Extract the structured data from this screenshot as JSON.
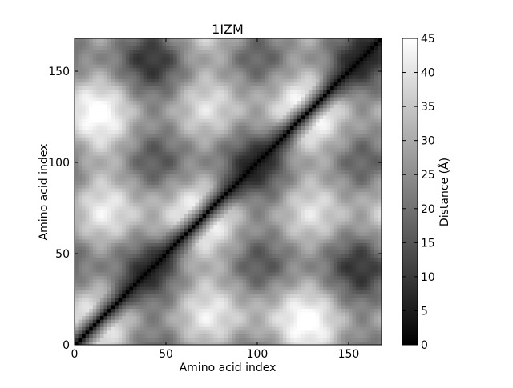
{
  "chart_data": {
    "type": "heatmap",
    "title": "1IZM",
    "xlabel": "Amino acid index",
    "ylabel": "Amino acid index",
    "xlim": [
      0,
      168
    ],
    "ylim": [
      0,
      168
    ],
    "xticks": [
      0,
      50,
      100,
      150
    ],
    "yticks": [
      0,
      50,
      100,
      150
    ],
    "colormap": "gray",
    "grid": false,
    "colorbar": {
      "label": "Distance (Å)",
      "min": 0,
      "max": 45,
      "ticks": [
        0,
        5,
        10,
        15,
        20,
        25,
        30,
        35,
        40,
        45
      ]
    },
    "matrix_description": "Symmetric residue pairwise distance map; dark diagonal (distance 0) from (0,0) to (168,168)"
  }
}
